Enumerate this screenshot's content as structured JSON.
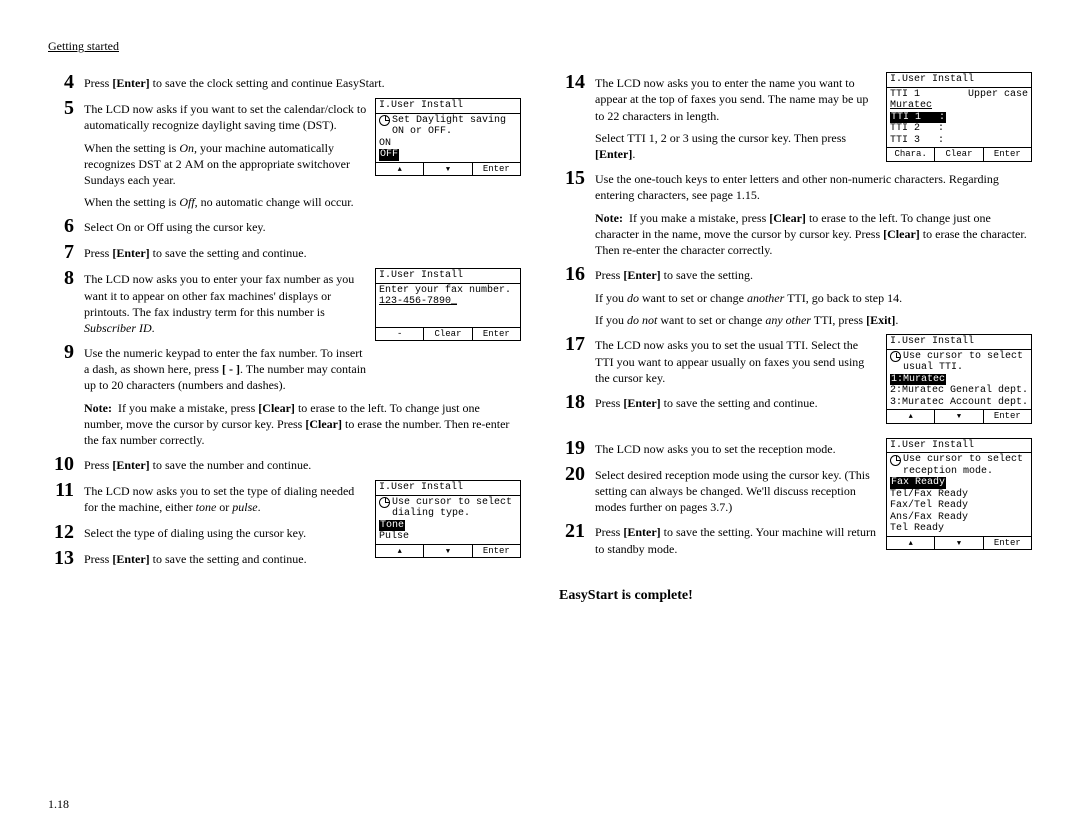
{
  "header": "Getting started",
  "page_number": "1.18",
  "completion": "EasyStart is complete!",
  "left_steps": [
    {
      "n": "4",
      "html": "Press <b>[Enter]</b> to save the clock setting and continue EasyStart."
    },
    {
      "n": "5",
      "html": "The <span class='smallcaps'>LCD</span> now asks if you want to set the calendar/clock to automatically recognize daylight saving time (<span class='smallcaps'>DST</span>)."
    },
    {
      "n": "6",
      "html": "Select On or Off using the cursor key."
    },
    {
      "n": "7",
      "html": "Press <b>[Enter]</b> to save the setting and continue."
    },
    {
      "n": "8",
      "html": "The <span class='smallcaps'>LCD</span> now asks you to enter your fax number as you want it to appear on other fax machines' displays or printouts. The fax industry term for this number is <i>Subscriber <span class='smallcaps'>ID</span></i>."
    },
    {
      "n": "9",
      "html": "Use the numeric keypad to enter the fax number. To insert a dash, as shown here, press <b>[ - ]</b>. The number may contain up to 20 characters (numbers and dashes)."
    },
    {
      "n": "10",
      "html": "Press <b>[Enter]</b> to save the number and continue."
    },
    {
      "n": "11",
      "html": "The <span class='smallcaps'>LCD</span> now asks you to set the type of dialing needed for the machine, either <i>tone</i> or <i>pulse</i>."
    },
    {
      "n": "12",
      "html": "Select the type of dialing using the cursor key."
    },
    {
      "n": "13",
      "html": "Press <b>[Enter]</b> to save the setting and continue."
    }
  ],
  "left_extras": {
    "after5_a": "When the setting is <i>On,</i> your machine automatically recognizes <span class='smallcaps'>DST</span> at 2 <span class='smallcaps'>AM</span> on the appropriate switchover Sundays each year.",
    "after5_b": "When the setting is <i>Off,</i> no automatic change will occur.",
    "note9": "If you make a mistake, press <b>[Clear]</b> to erase to the left. To change just one number, move the cursor by cursor key. Press <b>[Clear]</b> to erase the number. Then re-enter the fax number correctly."
  },
  "right_steps": [
    {
      "n": "14",
      "html": "The <span class='smallcaps'>LCD</span> now asks you to enter the name you want to appear at the top of faxes you send. The name may be up to 22 characters in length."
    },
    {
      "n": "15",
      "html": "Use the one-touch keys to enter letters and other non-numeric characters. Regarding entering characters, see page 1.15."
    },
    {
      "n": "16",
      "html": "Press <b>[Enter]</b> to save the setting."
    },
    {
      "n": "17",
      "html": "The <span class='smallcaps'>LCD</span> now asks you to set the usual TTI. Select the TTI you want to appear usually on faxes you send using the cursor key."
    },
    {
      "n": "18",
      "html": "Press <b>[Enter]</b> to save the setting and continue."
    },
    {
      "n": "19",
      "html": "The <span class='smallcaps'>LCD</span> now asks you to set the reception mode."
    },
    {
      "n": "20",
      "html": "Select desired reception mode using the cursor key. (This setting can always be changed. We'll discuss reception modes further on pages 3.7.)"
    },
    {
      "n": "21",
      "html": "Press <b>[Enter]</b> to save the setting. Your machine will return to standby mode."
    }
  ],
  "right_extras": {
    "after14": "Select TTI 1, 2 or 3 using the cursor key. Then press <b>[Enter]</b>.",
    "note15": "If you make a mistake, press <b>[Clear]</b> to erase to the left. To change just one character in the name, move the cursor by cursor key. Press <b>[Clear]</b> to erase the character. Then re-enter the character correctly.",
    "after16_a": "If you <i>do</i> want to set or change <i>another</i> TTI, go back to step 14.",
    "after16_b": "If you <i>do not</i> want to set or change <i>any other</i> TTI, press <b>[Exit]</b>."
  },
  "lcd": {
    "dst": {
      "title": "I.User Install",
      "line1": "Set Daylight saving",
      "line2": "ON or OFF.",
      "opts": [
        "ON",
        "OFF"
      ],
      "selected": 1,
      "footer": [
        "▲",
        "▼",
        "Enter"
      ]
    },
    "fax": {
      "title": "I.User Install",
      "line1": "Enter your fax number.",
      "line2": "123-456-7890_",
      "footer": [
        "-",
        "Clear",
        "Enter"
      ]
    },
    "dial": {
      "title": "I.User Install",
      "line1": "Use cursor to select",
      "line2": "dialing type.",
      "opts": [
        "Tone",
        "Pulse"
      ],
      "selected": 0,
      "footer": [
        "▲",
        "▼",
        "Enter"
      ]
    },
    "tti": {
      "title": "I.User Install",
      "right": "Upper case",
      "lines": [
        "TTI 1",
        "Muratec",
        "TTI 1   :",
        "TTI 2   :",
        "TTI 3   :"
      ],
      "highlighted": [
        2
      ],
      "footer": [
        "Chara.",
        "Clear",
        "Enter"
      ]
    },
    "usual": {
      "title": "I.User Install",
      "line1": "Use cursor to select",
      "line2": "usual TTI.",
      "opts": [
        "1:Muratec",
        "2:Muratec General dept.",
        "3:Muratec Account dept."
      ],
      "selected": 0,
      "footer": [
        "▲",
        "▼",
        "Enter"
      ]
    },
    "recep": {
      "title": "I.User Install",
      "line1": "Use cursor to select",
      "line2": "reception mode.",
      "opts": [
        "Fax Ready",
        "Tel/Fax Ready",
        "Fax/Tel Ready",
        "Ans/Fax Ready",
        "Tel Ready"
      ],
      "selected": 0,
      "footer": [
        "▲",
        "▼",
        "Enter"
      ]
    }
  }
}
